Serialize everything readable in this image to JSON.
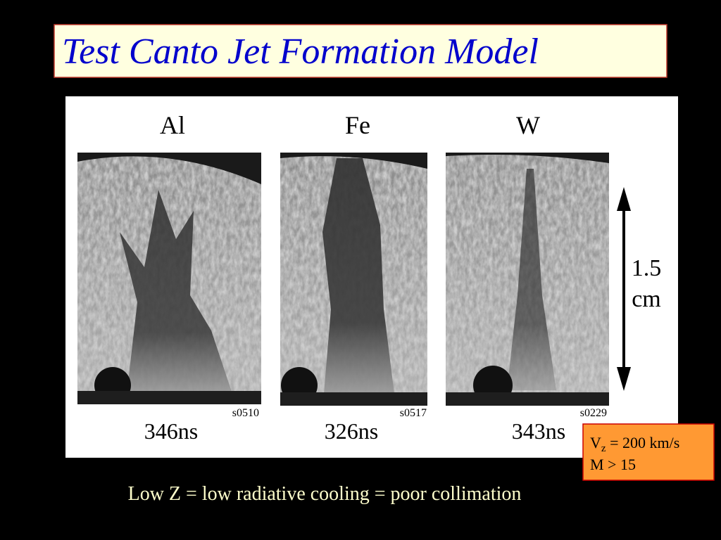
{
  "header": {
    "title": "Test Canto Jet Formation Model"
  },
  "figure": {
    "panels": [
      {
        "element": "Al",
        "time": "346ns",
        "shot": "s0510"
      },
      {
        "element": "Fe",
        "time": "326ns",
        "shot": "s0517"
      },
      {
        "element": "W",
        "time": "343ns",
        "shot": "s0229"
      }
    ],
    "scale": {
      "value": "1.5",
      "unit": "cm"
    }
  },
  "callout": {
    "line1": {
      "symbol": "V",
      "subscript": "z",
      "rest": " = 200 km/s"
    },
    "line2": "M > 15"
  },
  "caption": "Low Z = low radiative cooling = poor collimation"
}
